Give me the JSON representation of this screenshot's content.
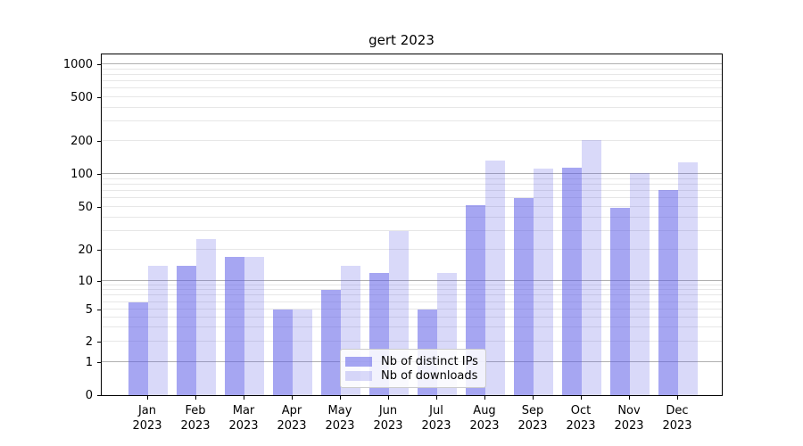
{
  "title": "gert 2023",
  "chart_data": {
    "type": "bar",
    "title": "gert 2023",
    "months": [
      "Jan",
      "Feb",
      "Mar",
      "Apr",
      "May",
      "Jun",
      "Jul",
      "Aug",
      "Sep",
      "Oct",
      "Nov",
      "Dec"
    ],
    "year_label": "2023",
    "categories": [
      "Jan 2023",
      "Feb 2023",
      "Mar 2023",
      "Apr 2023",
      "May 2023",
      "Jun 2023",
      "Jul 2023",
      "Aug 2023",
      "Sep 2023",
      "Oct 2023",
      "Nov 2023",
      "Dec 2023"
    ],
    "series": [
      {
        "name": "Nb of distinct IPs",
        "values": [
          6,
          14,
          17,
          5,
          8,
          12,
          5,
          52,
          60,
          115,
          49,
          72
        ]
      },
      {
        "name": "Nb of downloads",
        "values": [
          14,
          25,
          17,
          5,
          14,
          30,
          12,
          132,
          112,
          205,
          102,
          127
        ]
      }
    ],
    "y_ticks": [
      0,
      1,
      2,
      5,
      10,
      20,
      50,
      100,
      200,
      500,
      1000
    ],
    "yscale": "log-like custom (ticks 0,1,2,5,10,20,50,100,200,500,1000)",
    "ylim": [
      0,
      1400
    ],
    "grid": "on",
    "legend_position": "lower center",
    "colors": {
      "distinct_ips": "rgba(92,92,231,0.55)",
      "downloads": "rgba(92,92,231,0.235)",
      "grid_major": "#b0b0b0",
      "grid_minor": "#e7e7e7",
      "axis": "#000000"
    }
  },
  "legend": {
    "items": [
      {
        "label": "Nb of distinct IPs"
      },
      {
        "label": "Nb of downloads"
      }
    ]
  }
}
